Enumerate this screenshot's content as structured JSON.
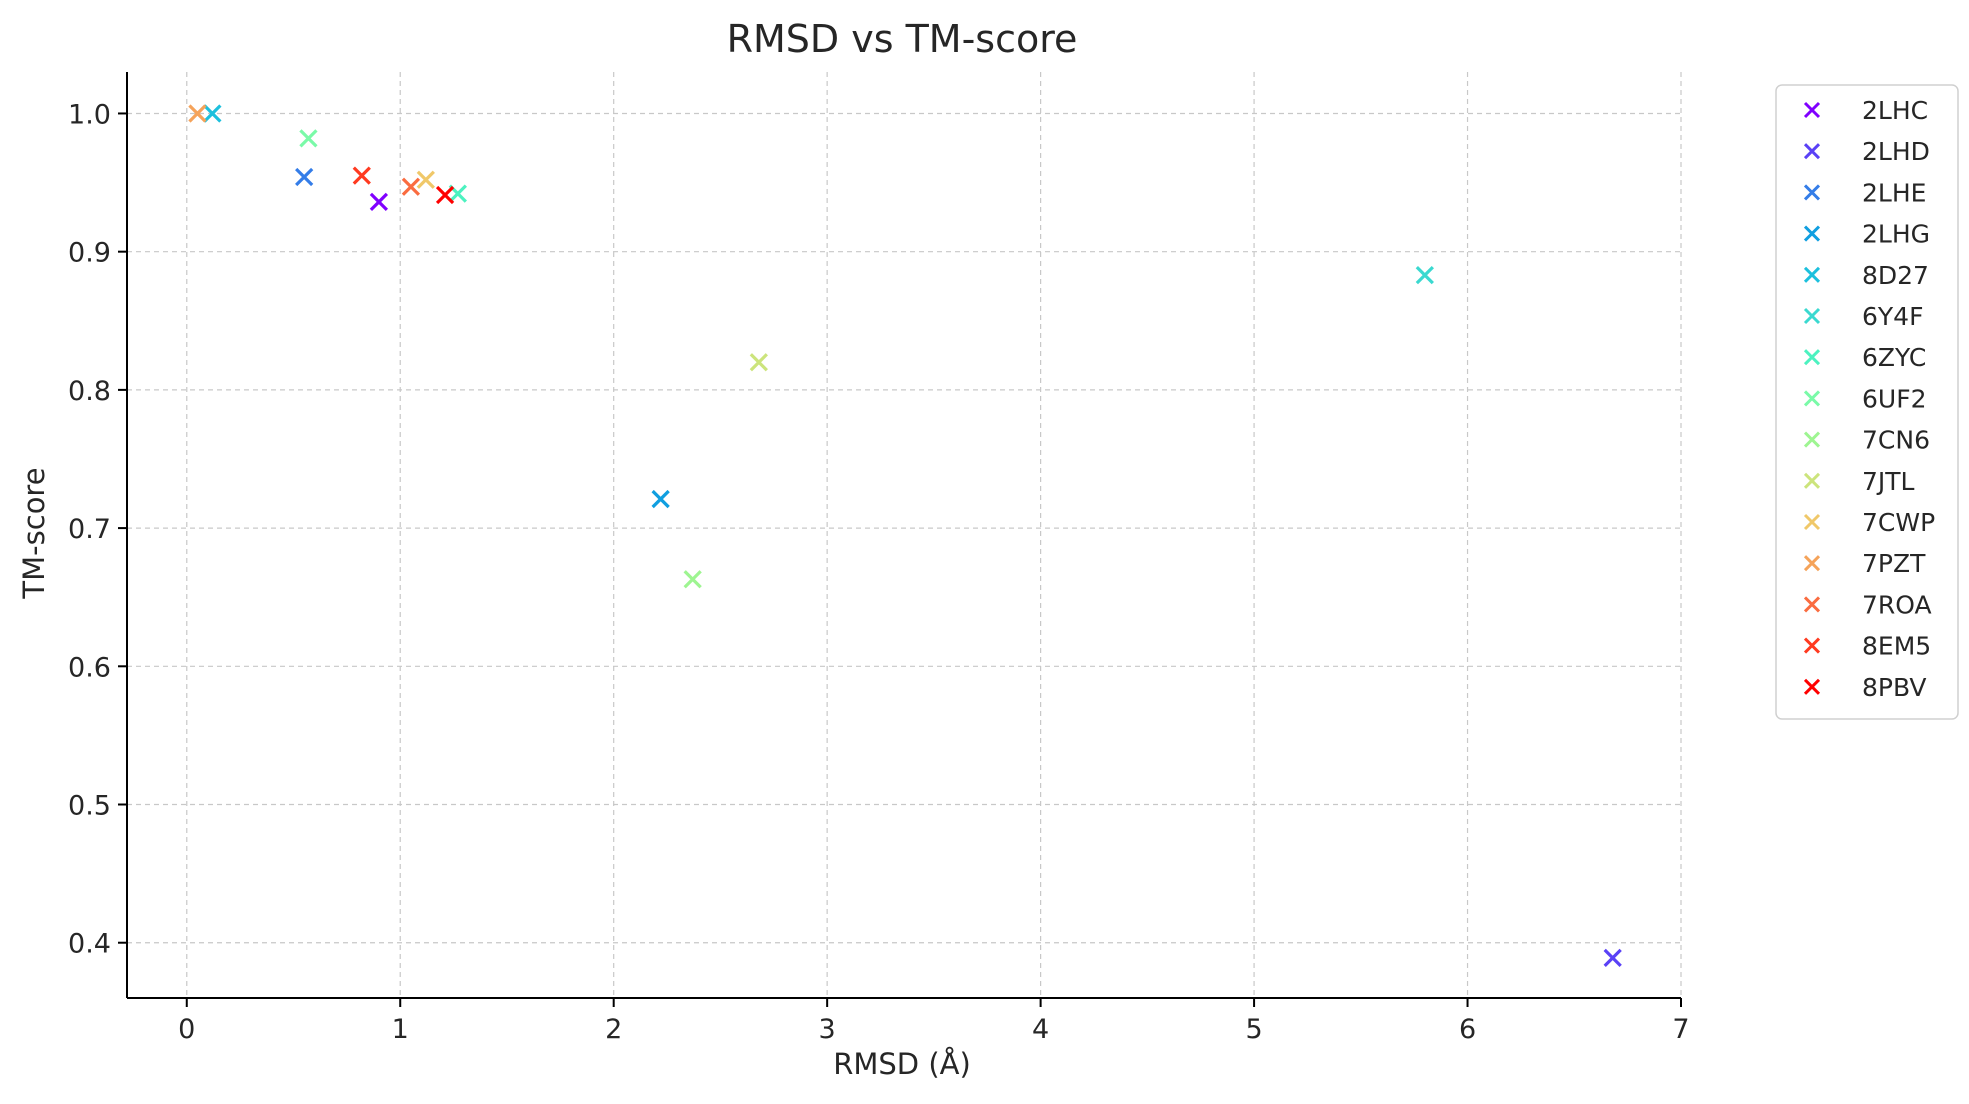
{
  "chart_data": {
    "type": "scatter",
    "title": "RMSD vs TM-score",
    "xlabel": "RMSD (Å)",
    "ylabel": "TM-score",
    "xlim": [
      -0.28,
      7.0
    ],
    "ylim": [
      0.36,
      1.03
    ],
    "xticks": [
      0,
      1,
      2,
      3,
      4,
      5,
      6,
      7
    ],
    "xtick_labels": [
      "0",
      "1",
      "2",
      "3",
      "4",
      "5",
      "6",
      "7"
    ],
    "yticks": [
      0.4,
      0.5,
      0.6,
      0.7,
      0.8,
      0.9,
      1.0
    ],
    "ytick_labels": [
      "0.4",
      "0.5",
      "0.6",
      "0.7",
      "0.8",
      "0.9",
      "1.0"
    ],
    "grid": true,
    "marker": "x",
    "legend_position": "outside-right-top",
    "series": [
      {
        "name": "2LHC",
        "color": "#8000ff",
        "x": 0.9,
        "y": 0.936
      },
      {
        "name": "2LHD",
        "color": "#5a41f6",
        "x": 6.68,
        "y": 0.389
      },
      {
        "name": "2LHE",
        "color": "#347de8",
        "x": 0.55,
        "y": 0.954
      },
      {
        "name": "2LHG",
        "color": "#109fe0",
        "x": 2.22,
        "y": 0.721
      },
      {
        "name": "8D27",
        "color": "#1cc0dd",
        "x": 0.12,
        "y": 1.0
      },
      {
        "name": "6Y4F",
        "color": "#3ad9d0",
        "x": 5.8,
        "y": 0.883
      },
      {
        "name": "6ZYC",
        "color": "#4cf2c0",
        "x": 1.27,
        "y": 0.942
      },
      {
        "name": "6UF2",
        "color": "#7afaa8",
        "x": 0.57,
        "y": 0.982
      },
      {
        "name": "7CN6",
        "color": "#9ef591",
        "x": 2.37,
        "y": 0.663
      },
      {
        "name": "7JTL",
        "color": "#cce47c",
        "x": 2.68,
        "y": 0.82
      },
      {
        "name": "7CWP",
        "color": "#f0c869",
        "x": 1.12,
        "y": 0.952
      },
      {
        "name": "7PZT",
        "color": "#f5a35a",
        "x": 0.05,
        "y": 1.0
      },
      {
        "name": "7ROA",
        "color": "#fa6c40",
        "x": 1.05,
        "y": 0.947
      },
      {
        "name": "8EM5",
        "color": "#ff3a20",
        "x": 0.82,
        "y": 0.955
      },
      {
        "name": "8PBV",
        "color": "#ff0000",
        "x": 1.21,
        "y": 0.941
      }
    ]
  }
}
